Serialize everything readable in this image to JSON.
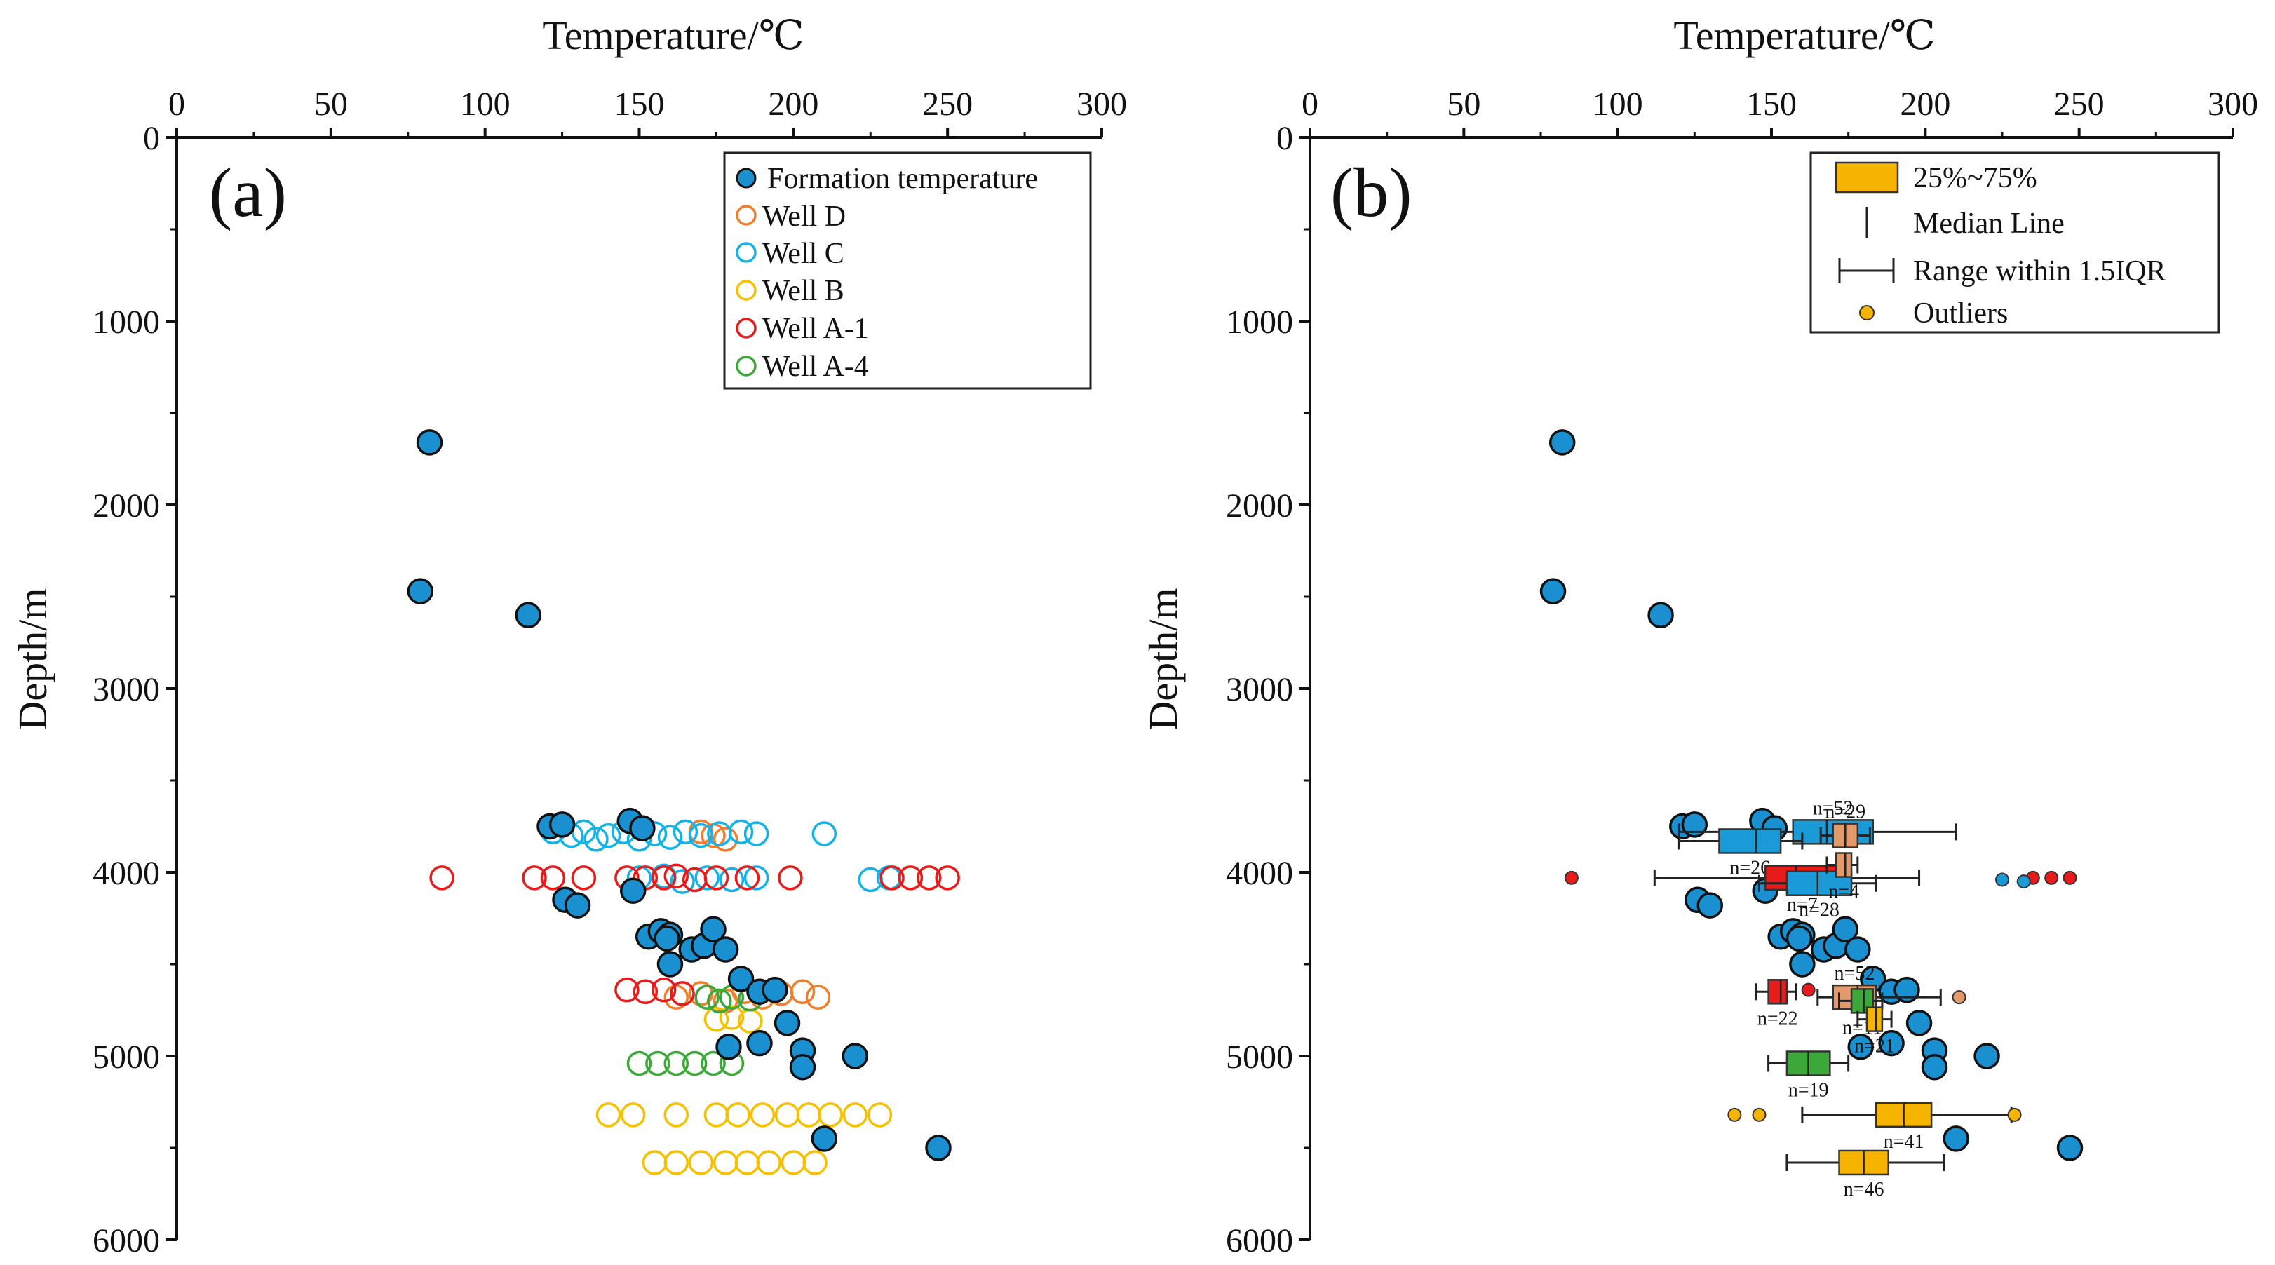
{
  "chart_data": [
    {
      "type": "scatter",
      "panel_label": "(a)",
      "xlabel": "Temperature/℃",
      "ylabel": "Depth/m",
      "xlim": [
        0,
        300
      ],
      "ylim": [
        0,
        6000
      ],
      "x_ticks": [
        "0",
        "50",
        "100",
        "150",
        "200",
        "250",
        "300"
      ],
      "y_ticks": [
        "0",
        "1000",
        "2000",
        "3000",
        "4000",
        "5000",
        "6000"
      ],
      "legend": {
        "placement": "top-right",
        "entries": [
          "Formation temperature",
          "Well D",
          "Well C",
          "Well B",
          "Well A-1",
          "Well A-4"
        ]
      },
      "series": [
        {
          "name": "Formation temperature",
          "color": "#1b90d0",
          "marker": "filled-circle",
          "points": [
            [
              82,
              1660
            ],
            [
              79,
              2470
            ],
            [
              114,
              2600
            ],
            [
              121,
              3750
            ],
            [
              125,
              3740
            ],
            [
              147,
              3720
            ],
            [
              151,
              3760
            ],
            [
              126,
              4150
            ],
            [
              130,
              4180
            ],
            [
              148,
              4100
            ],
            [
              153,
              4350
            ],
            [
              157,
              4320
            ],
            [
              160,
              4340
            ],
            [
              159,
              4360
            ],
            [
              167,
              4420
            ],
            [
              171,
              4400
            ],
            [
              174,
              4310
            ],
            [
              178,
              4420
            ],
            [
              183,
              4580
            ],
            [
              189,
              4650
            ],
            [
              194,
              4640
            ],
            [
              198,
              4820
            ],
            [
              179,
              4950
            ],
            [
              189,
              4930
            ],
            [
              203,
              4970
            ],
            [
              203,
              5060
            ],
            [
              220,
              5000
            ],
            [
              210,
              5450
            ],
            [
              247,
              5500
            ],
            [
              160,
              4500
            ]
          ]
        },
        {
          "name": "Well D",
          "color": "#f07f2d",
          "marker": "open-circle",
          "points": [
            [
              170,
              3780
            ],
            [
              174,
              3800
            ],
            [
              178,
              3820
            ],
            [
              162,
              4680
            ],
            [
              170,
              4660
            ],
            [
              178,
              4700
            ],
            [
              184,
              4650
            ],
            [
              190,
              4680
            ],
            [
              196,
              4660
            ],
            [
              203,
              4650
            ],
            [
              208,
              4680
            ]
          ]
        },
        {
          "name": "Well C",
          "color": "#13b3e8",
          "marker": "open-circle",
          "points": [
            [
              122,
              3780
            ],
            [
              128,
              3800
            ],
            [
              132,
              3780
            ],
            [
              136,
              3820
            ],
            [
              140,
              3800
            ],
            [
              145,
              3780
            ],
            [
              150,
              3820
            ],
            [
              155,
              3790
            ],
            [
              160,
              3810
            ],
            [
              165,
              3780
            ],
            [
              170,
              3800
            ],
            [
              176,
              3790
            ],
            [
              183,
              3780
            ],
            [
              188,
              3790
            ],
            [
              210,
              3790
            ],
            [
              150,
              4030
            ],
            [
              158,
              4020
            ],
            [
              164,
              4050
            ],
            [
              172,
              4030
            ],
            [
              180,
              4040
            ],
            [
              188,
              4030
            ],
            [
              225,
              4040
            ],
            [
              231,
              4030
            ]
          ]
        },
        {
          "name": "Well B",
          "color": "#f6c000",
          "marker": "open-circle",
          "points": [
            [
              175,
              4800
            ],
            [
              180,
              4790
            ],
            [
              186,
              4810
            ],
            [
              140,
              5320
            ],
            [
              148,
              5320
            ],
            [
              162,
              5320
            ],
            [
              175,
              5320
            ],
            [
              182,
              5320
            ],
            [
              190,
              5320
            ],
            [
              198,
              5320
            ],
            [
              205,
              5320
            ],
            [
              212,
              5320
            ],
            [
              220,
              5320
            ],
            [
              228,
              5320
            ],
            [
              155,
              5580
            ],
            [
              162,
              5580
            ],
            [
              170,
              5580
            ],
            [
              178,
              5580
            ],
            [
              185,
              5580
            ],
            [
              192,
              5580
            ],
            [
              200,
              5580
            ],
            [
              207,
              5580
            ]
          ]
        },
        {
          "name": "Well A-1",
          "color": "#e81a1a",
          "marker": "open-circle",
          "points": [
            [
              86,
              4030
            ],
            [
              116,
              4030
            ],
            [
              122,
              4030
            ],
            [
              132,
              4030
            ],
            [
              146,
              4030
            ],
            [
              152,
              4030
            ],
            [
              158,
              4030
            ],
            [
              162,
              4020
            ],
            [
              168,
              4040
            ],
            [
              175,
              4030
            ],
            [
              185,
              4030
            ],
            [
              199,
              4030
            ],
            [
              232,
              4030
            ],
            [
              238,
              4030
            ],
            [
              244,
              4030
            ],
            [
              250,
              4030
            ],
            [
              146,
              4640
            ],
            [
              152,
              4650
            ],
            [
              158,
              4640
            ],
            [
              164,
              4660
            ]
          ]
        },
        {
          "name": "Well A-4",
          "color": "#3da83a",
          "marker": "open-circle",
          "points": [
            [
              172,
              4680
            ],
            [
              176,
              4700
            ],
            [
              180,
              4680
            ],
            [
              186,
              4690
            ],
            [
              150,
              5040
            ],
            [
              156,
              5040
            ],
            [
              162,
              5040
            ],
            [
              168,
              5040
            ],
            [
              174,
              5040
            ],
            [
              180,
              5040
            ]
          ]
        }
      ]
    },
    {
      "type": "box",
      "panel_label": "(b)",
      "xlabel": "Temperature/℃",
      "ylabel": "Depth/m",
      "xlim": [
        0,
        300
      ],
      "ylim": [
        0,
        6000
      ],
      "x_ticks": [
        "0",
        "50",
        "100",
        "150",
        "200",
        "250",
        "300"
      ],
      "y_ticks": [
        "0",
        "1000",
        "2000",
        "3000",
        "4000",
        "5000",
        "6000"
      ],
      "legend": {
        "placement": "top-right",
        "entries": [
          "25%~75%",
          "Median Line",
          "Range within 1.5IQR",
          "Outliers"
        ]
      },
      "formation_points": [
        [
          82,
          1660
        ],
        [
          79,
          2470
        ],
        [
          114,
          2600
        ],
        [
          121,
          3750
        ],
        [
          125,
          3740
        ],
        [
          147,
          3720
        ],
        [
          151,
          3760
        ],
        [
          126,
          4150
        ],
        [
          130,
          4180
        ],
        [
          148,
          4100
        ],
        [
          153,
          4350
        ],
        [
          157,
          4320
        ],
        [
          160,
          4340
        ],
        [
          159,
          4360
        ],
        [
          167,
          4420
        ],
        [
          171,
          4400
        ],
        [
          174,
          4310
        ],
        [
          178,
          4420
        ],
        [
          183,
          4580
        ],
        [
          189,
          4650
        ],
        [
          194,
          4640
        ],
        [
          198,
          4820
        ],
        [
          179,
          4950
        ],
        [
          189,
          4930
        ],
        [
          203,
          4970
        ],
        [
          203,
          5060
        ],
        [
          220,
          5000
        ],
        [
          210,
          5450
        ],
        [
          247,
          5500
        ],
        [
          160,
          4500
        ]
      ],
      "boxes": [
        {
          "well": "Well C",
          "depth": 3780,
          "q1": 157,
          "median": 168,
          "q3": 183,
          "lo": 120,
          "hi": 210,
          "color": "#1b9ad8",
          "n_label": "n=52",
          "outliers": []
        },
        {
          "well": "Well C",
          "depth": 3830,
          "q1": 133,
          "median": 145,
          "q3": 153,
          "lo": 120,
          "hi": 160,
          "color": "#1b9ad8",
          "n_label": "n=26",
          "outliers": []
        },
        {
          "well": "Well D",
          "depth": 3800,
          "q1": 170,
          "median": 174,
          "q3": 178,
          "lo": 166,
          "hi": 182,
          "color": "#e29a6a",
          "n_label": "n=29",
          "outliers": []
        },
        {
          "well": "Well A-1",
          "depth": 4030,
          "q1": 148,
          "median": 158,
          "q3": 172,
          "lo": 112,
          "hi": 198,
          "color": "#e81a1a",
          "n_label": "n=7",
          "outliers": [
            [
              85,
              4030
            ],
            [
              235,
              4030
            ],
            [
              241,
              4030
            ],
            [
              247,
              4030
            ]
          ]
        },
        {
          "well": "Well C",
          "depth": 4060,
          "q1": 155,
          "median": 165,
          "q3": 176,
          "lo": 146,
          "hi": 184,
          "color": "#1b9ad8",
          "n_label": "n=28",
          "outliers": [
            [
              225,
              4040
            ],
            [
              232,
              4050
            ]
          ]
        },
        {
          "well": "Well D",
          "depth": 3960,
          "q1": 171,
          "median": 174,
          "q3": 176,
          "lo": 168,
          "hi": 178,
          "color": "#e29a6a",
          "n_label": "n=4",
          "outliers": []
        },
        {
          "well": "Well A-1",
          "depth": 4650,
          "q1": 149,
          "median": 153,
          "q3": 155,
          "lo": 145,
          "hi": 158,
          "color": "#e81a1a",
          "n_label": "n=22",
          "outliers": [
            [
              162,
              4640
            ]
          ]
        },
        {
          "well": "Well D",
          "depth": 4680,
          "q1": 170,
          "median": 178,
          "q3": 184,
          "lo": 165,
          "hi": 205,
          "color": "#e29a6a",
          "n_label": "n=52",
          "outliers": [
            [
              211,
              4680
            ]
          ]
        },
        {
          "well": "Well A-4",
          "depth": 4700,
          "q1": 176,
          "median": 180,
          "q3": 183,
          "lo": 172,
          "hi": 186,
          "color": "#3da83a",
          "n_label": "n=11",
          "outliers": []
        },
        {
          "well": "Well B",
          "depth": 4800,
          "q1": 181,
          "median": 184,
          "q3": 186,
          "lo": 178,
          "hi": 189,
          "color": "#f6b400",
          "n_label": "n=21",
          "outliers": []
        },
        {
          "well": "Well A-4",
          "depth": 5040,
          "q1": 155,
          "median": 162,
          "q3": 169,
          "lo": 149,
          "hi": 175,
          "color": "#3da83a",
          "n_label": "n=19",
          "outliers": []
        },
        {
          "well": "Well B",
          "depth": 5320,
          "q1": 184,
          "median": 193,
          "q3": 202,
          "lo": 160,
          "hi": 228,
          "color": "#f6b400",
          "n_label": "n=41",
          "outliers": [
            [
              138,
              5320
            ],
            [
              146,
              5320
            ],
            [
              229,
              5320
            ]
          ]
        },
        {
          "well": "Well B",
          "depth": 5580,
          "q1": 172,
          "median": 180,
          "q3": 188,
          "lo": 155,
          "hi": 206,
          "color": "#f6b400",
          "n_label": "n=46",
          "outliers": []
        }
      ]
    }
  ]
}
